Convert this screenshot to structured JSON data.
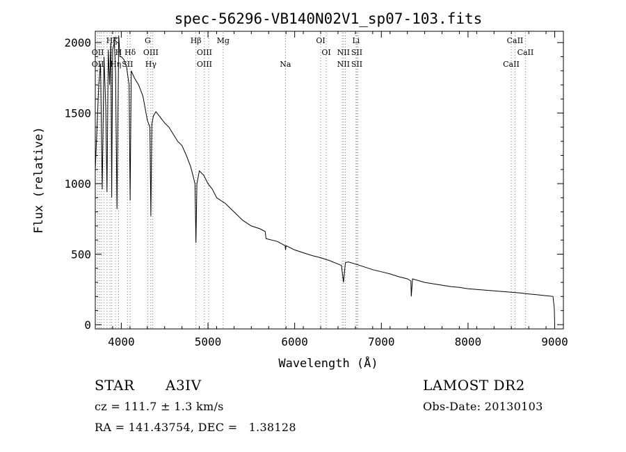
{
  "chart_data": {
    "type": "line",
    "title": "spec-56296-VB140N02V1_sp07-103.fits",
    "xlabel": "Wavelength (Å)",
    "ylabel": "Flux (relative)",
    "xlim": [
      3700,
      9100
    ],
    "ylim": [
      -30,
      2080
    ],
    "xticks": [
      4000,
      5000,
      6000,
      7000,
      8000,
      9000
    ],
    "yticks": [
      0,
      500,
      1000,
      1500,
      2000
    ],
    "grid": false,
    "line_color": "#000000",
    "line_label_color": "#000000",
    "spectrum": {
      "x": [
        3700,
        3720,
        3740,
        3760,
        3780,
        3800,
        3820,
        3835,
        3850,
        3865,
        3880,
        3889,
        3900,
        3920,
        3934,
        3950,
        3970,
        3985,
        4000,
        4030,
        4060,
        4090,
        4102,
        4115,
        4150,
        4200,
        4250,
        4300,
        4330,
        4341,
        4352,
        4370,
        4400,
        4450,
        4500,
        4550,
        4600,
        4650,
        4700,
        4750,
        4800,
        4830,
        4850,
        4861,
        4872,
        4900,
        4950,
        5000,
        5050,
        5100,
        5200,
        5300,
        5400,
        5500,
        5600,
        5660,
        5670,
        5800,
        5890,
        5895,
        5900,
        6000,
        6100,
        6200,
        6300,
        6400,
        6500,
        6540,
        6563,
        6585,
        6620,
        6700,
        6800,
        6900,
        7000,
        7100,
        7200,
        7300,
        7340,
        7345,
        7360,
        7500,
        7600,
        7700,
        7800,
        7900,
        8000,
        8100,
        8200,
        8300,
        8400,
        8500,
        8600,
        8700,
        8800,
        8900,
        8980,
        8995,
        9000
      ],
      "y": [
        1100,
        1400,
        1700,
        1850,
        960,
        1900,
        1550,
        940,
        1950,
        1700,
        2000,
        900,
        1950,
        2000,
        1780,
        820,
        2050,
        1900,
        1900,
        1880,
        1830,
        1700,
        880,
        1800,
        1750,
        1700,
        1620,
        1450,
        1400,
        770,
        1420,
        1480,
        1510,
        1470,
        1430,
        1400,
        1350,
        1300,
        1270,
        1200,
        1120,
        1050,
        1000,
        580,
        1000,
        1090,
        1060,
        1000,
        960,
        900,
        860,
        800,
        740,
        700,
        680,
        660,
        610,
        590,
        560,
        530,
        560,
        530,
        510,
        490,
        475,
        455,
        430,
        420,
        300,
        440,
        445,
        430,
        410,
        390,
        375,
        360,
        340,
        325,
        310,
        200,
        325,
        300,
        290,
        280,
        270,
        265,
        255,
        250,
        245,
        240,
        235,
        230,
        225,
        218,
        212,
        205,
        200,
        120,
        0
      ]
    },
    "line_labels": [
      {
        "wavelength": 3729,
        "top": "",
        "mid": "OII",
        "low": "OII"
      },
      {
        "wavelength": 3750,
        "top": "",
        "mid": "",
        "low": ""
      },
      {
        "wavelength": 3770,
        "top": "",
        "mid": "",
        "low": ""
      },
      {
        "wavelength": 3798,
        "top": "",
        "mid": "",
        "low": ""
      },
      {
        "wavelength": 3835,
        "top": "",
        "mid": "",
        "low": ""
      },
      {
        "wavelength": 3869,
        "top": "",
        "mid": "",
        "low": ""
      },
      {
        "wavelength": 3889,
        "top": "Hζ",
        "mid": "",
        "low": ""
      },
      {
        "wavelength": 3934,
        "top": "K",
        "mid": "",
        "low": "Hη"
      },
      {
        "wavelength": 3968,
        "top": "",
        "mid": "H",
        "low": ""
      },
      {
        "wavelength": 4072,
        "top": "",
        "mid": "",
        "low": "SII"
      },
      {
        "wavelength": 4102,
        "top": "",
        "mid": "Hδ",
        "low": ""
      },
      {
        "wavelength": 4305,
        "top": "G",
        "mid": "",
        "low": ""
      },
      {
        "wavelength": 4341,
        "top": "",
        "mid": "OIII",
        "low": "Hγ"
      },
      {
        "wavelength": 4363,
        "top": "",
        "mid": "",
        "low": ""
      },
      {
        "wavelength": 4861,
        "top": "Hβ",
        "mid": "",
        "low": ""
      },
      {
        "wavelength": 4959,
        "top": "",
        "mid": "OIII",
        "low": "OIII"
      },
      {
        "wavelength": 5007,
        "top": "",
        "mid": "",
        "low": ""
      },
      {
        "wavelength": 5175,
        "top": "Mg",
        "mid": "",
        "low": ""
      },
      {
        "wavelength": 5893,
        "top": "",
        "mid": "",
        "low": "Na"
      },
      {
        "wavelength": 6300,
        "top": "OI",
        "mid": "",
        "low": ""
      },
      {
        "wavelength": 6364,
        "top": "",
        "mid": "OI",
        "low": ""
      },
      {
        "wavelength": 6548,
        "top": "",
        "mid": "",
        "low": ""
      },
      {
        "wavelength": 6563,
        "top": "",
        "mid": "NII",
        "low": "NII"
      },
      {
        "wavelength": 6584,
        "top": "",
        "mid": "",
        "low": ""
      },
      {
        "wavelength": 6708,
        "top": "Li",
        "mid": "",
        "low": ""
      },
      {
        "wavelength": 6717,
        "top": "",
        "mid": "SII",
        "low": "SII"
      },
      {
        "wavelength": 6731,
        "top": "",
        "mid": "",
        "low": ""
      },
      {
        "wavelength": 8498,
        "top": "",
        "mid": "",
        "low": "CaII"
      },
      {
        "wavelength": 8542,
        "top": "CaII",
        "mid": "",
        "low": ""
      },
      {
        "wavelength": 8662,
        "top": "",
        "mid": "CaII",
        "low": ""
      }
    ]
  },
  "info": {
    "class_label": "STAR",
    "subclass": "A3IV",
    "survey": "LAMOST DR2",
    "cz_text": "cz = 111.7 ± 1.3 km/s",
    "obs_date_text": "Obs-Date: 20130103",
    "coords_text": "RA = 141.43754, DEC =   1.38128"
  }
}
